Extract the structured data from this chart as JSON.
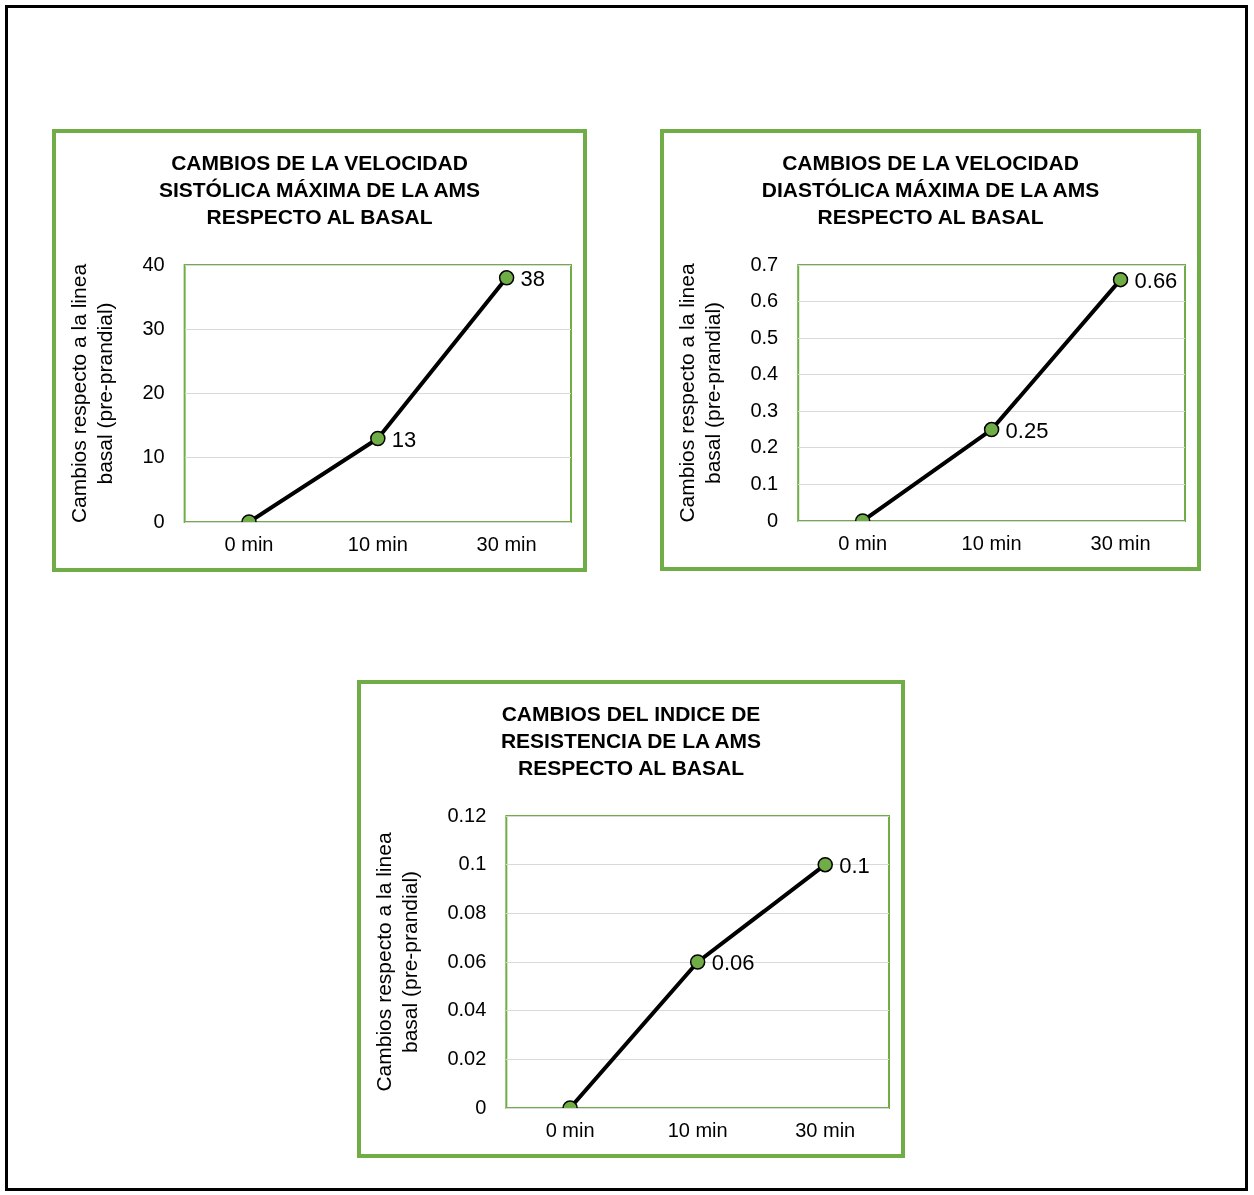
{
  "chart_data": [
    {
      "type": "line",
      "title": "CAMBIOS DE LA VELOCIDAD SISTÓLICA MÁXIMA DE LA AMS RESPECTO AL BASAL",
      "ylabel": "Cambios respecto a la linea basal (pre-prandial)",
      "categories": [
        "0 min",
        "10 min",
        "30 min"
      ],
      "values": [
        0,
        13,
        38
      ],
      "value_labels": [
        null,
        "13",
        "38"
      ],
      "color": "#000000",
      "marker": "circle",
      "ylim": [
        0,
        40
      ],
      "yticks": [
        0,
        10,
        20,
        30,
        40
      ],
      "grid": "y",
      "legend": false
    },
    {
      "type": "line",
      "title": "CAMBIOS DE LA VELOCIDAD DIASTÓLICA MÁXIMA DE LA AMS RESPECTO AL BASAL",
      "ylabel": "Cambios respecto a la linea basal (pre-prandial)",
      "categories": [
        "0 min",
        "10 min",
        "30 min"
      ],
      "values": [
        0,
        0.25,
        0.66
      ],
      "value_labels": [
        null,
        "0.25",
        "0.66"
      ],
      "color": "#000000",
      "marker": "circle",
      "ylim": [
        0,
        0.7
      ],
      "yticks": [
        0,
        0.1,
        0.2,
        0.3,
        0.4,
        0.5,
        0.6,
        0.7
      ],
      "grid": "y",
      "legend": false
    },
    {
      "type": "line",
      "title": "CAMBIOS DEL INDICE DE RESISTENCIA DE LA AMS RESPECTO AL BASAL",
      "ylabel": "Cambios respecto a la linea basal (pre-prandial)",
      "categories": [
        "0 min",
        "10 min",
        "30 min"
      ],
      "values": [
        0,
        0.06,
        0.1
      ],
      "value_labels": [
        null,
        "0.06",
        "0.1"
      ],
      "color": "#000000",
      "marker": "circle",
      "ylim": [
        0,
        0.12
      ],
      "yticks": [
        0,
        0.02,
        0.04,
        0.06,
        0.08,
        0.1,
        0.12
      ],
      "grid": "y",
      "legend": false
    }
  ]
}
